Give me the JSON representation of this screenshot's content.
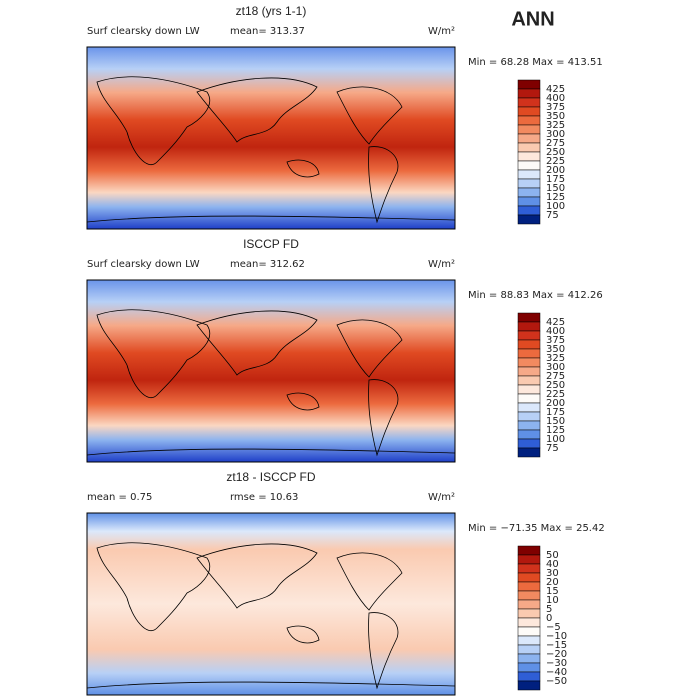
{
  "header": {
    "title": "ANN"
  },
  "panels": [
    {
      "title": "zt18 (yrs 1-1)",
      "label": "Surf clearsky down LW",
      "stat1": "mean= 313.37",
      "units": "W/m²",
      "minmax": "Min =  68.28 Max = 413.51",
      "levels": [
        "425",
        "400",
        "375",
        "350",
        "325",
        "300",
        "275",
        "250",
        "225",
        "200",
        "175",
        "150",
        "125",
        "100",
        "75"
      ],
      "colors": [
        "#7f0000",
        "#b2180e",
        "#d1321c",
        "#e04a22",
        "#ec6a3e",
        "#f28a60",
        "#f6a988",
        "#facab0",
        "#fde8dc",
        "#fdfbf8",
        "#dbe8fb",
        "#b7d0f6",
        "#8cb3ef",
        "#5f90e6",
        "#2f5ed6",
        "#00207f"
      ]
    },
    {
      "title": "ISCCP FD",
      "label": "Surf clearsky down LW",
      "stat1": "mean= 312.62",
      "units": "W/m²",
      "minmax": "Min =  88.83 Max = 412.26",
      "levels": [
        "425",
        "400",
        "375",
        "350",
        "325",
        "300",
        "275",
        "250",
        "225",
        "200",
        "175",
        "150",
        "125",
        "100",
        "75"
      ],
      "colors": [
        "#7f0000",
        "#b2180e",
        "#d1321c",
        "#e04a22",
        "#ec6a3e",
        "#f28a60",
        "#f6a988",
        "#facab0",
        "#fde8dc",
        "#fdfbf8",
        "#dbe8fb",
        "#b7d0f6",
        "#8cb3ef",
        "#5f90e6",
        "#2f5ed6",
        "#00207f"
      ]
    },
    {
      "title": "zt18 - ISCCP FD",
      "label": "mean =    0.75",
      "stat1": "rmse =  10.63",
      "units": "W/m²",
      "minmax": "Min = −71.35 Max =  25.42",
      "levels": [
        "50",
        "40",
        "30",
        "20",
        "15",
        "10",
        "5",
        "0",
        "−5",
        "−10",
        "−15",
        "−20",
        "−30",
        "−40",
        "−50"
      ],
      "colors": [
        "#7f0000",
        "#b2180e",
        "#d1321c",
        "#e04a22",
        "#ec6a3e",
        "#f28a60",
        "#f6a988",
        "#facab0",
        "#fde8dc",
        "#fdfbf8",
        "#dbe8fb",
        "#b7d0f6",
        "#8cb3ef",
        "#5f90e6",
        "#2f5ed6",
        "#00207f"
      ]
    }
  ]
}
